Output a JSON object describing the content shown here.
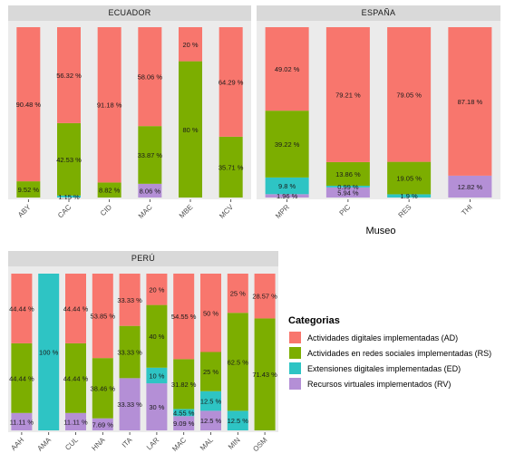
{
  "colors": {
    "AD": "#f8766d",
    "RS": "#7cae00",
    "ED": "#2ec4c4",
    "RV": "#b48fd6",
    "panel_bg": "#ebebeb",
    "strip_bg": "#d9d9d9"
  },
  "chart_data": [
    {
      "type": "bar",
      "panel": "ECUADOR",
      "categories": [
        "ABY",
        "CAC",
        "CID",
        "MAC",
        "MBE",
        "MCV"
      ],
      "series": [
        {
          "name": "Recursos virtuales implementados (RV)",
          "key": "RV",
          "values": [
            0,
            0,
            0,
            8.06,
            0,
            0
          ]
        },
        {
          "name": "Extensiones digitales implementadas (ED)",
          "key": "ED",
          "values": [
            0,
            1.15,
            0,
            0,
            0,
            0
          ]
        },
        {
          "name": "Actividades en redes sociales implementadas (RS)",
          "key": "RS",
          "values": [
            9.52,
            42.53,
            8.82,
            33.87,
            80,
            35.71
          ]
        },
        {
          "name": "Actividades digitales implementadas (AD)",
          "key": "AD",
          "values": [
            90.48,
            56.32,
            91.18,
            58.06,
            20,
            64.29
          ]
        }
      ],
      "labels": [
        [
          "",
          "",
          "9.52 %",
          "90.48 %"
        ],
        [
          "",
          "1.15 %",
          "42.53 %",
          "56.32 %"
        ],
        [
          "",
          "",
          "8.82 %",
          "91.18 %"
        ],
        [
          "8.06 %",
          "",
          "33.87 %",
          "58.06 %"
        ],
        [
          "",
          "",
          "80 %",
          "20 %"
        ],
        [
          "",
          "",
          "35.71 %",
          "64.29 %"
        ]
      ],
      "ylim": [
        0,
        100
      ]
    },
    {
      "type": "bar",
      "panel": "ESPAÑA",
      "categories": [
        "MPR",
        "PIC",
        "RES",
        "THI"
      ],
      "series": [
        {
          "name": "Recursos virtuales implementados (RV)",
          "key": "RV",
          "values": [
            1.96,
            5.94,
            0,
            12.82
          ]
        },
        {
          "name": "Extensiones digitales implementadas (ED)",
          "key": "ED",
          "values": [
            9.8,
            0.99,
            1.9,
            0
          ]
        },
        {
          "name": "Actividades en redes sociales implementadas (RS)",
          "key": "RS",
          "values": [
            39.22,
            13.86,
            19.05,
            0
          ]
        },
        {
          "name": "Actividades digitales implementadas (AD)",
          "key": "AD",
          "values": [
            49.02,
            79.21,
            79.05,
            87.18
          ]
        }
      ],
      "labels": [
        [
          "1.96 %",
          "9.8 %",
          "39.22 %",
          "49.02 %"
        ],
        [
          "5.94 %",
          "0.99 %",
          "13.86 %",
          "79.21 %"
        ],
        [
          "",
          "1.9 %",
          "19.05 %",
          "79.05 %"
        ],
        [
          "12.82 %",
          "",
          "",
          "87.18 %"
        ]
      ],
      "ylim": [
        0,
        100
      ]
    },
    {
      "type": "bar",
      "panel": "PERÚ",
      "categories": [
        "AAH",
        "AMA",
        "CUL",
        "HNA",
        "ITA",
        "LAR",
        "MAC",
        "MAL",
        "MIN",
        "OSM"
      ],
      "series": [
        {
          "name": "Recursos virtuales implementados (RV)",
          "key": "RV",
          "values": [
            11.11,
            0,
            11.11,
            7.69,
            33.33,
            30,
            9.09,
            12.5,
            0,
            0
          ]
        },
        {
          "name": "Extensiones digitales implementadas (ED)",
          "key": "ED",
          "values": [
            0,
            100,
            0,
            0,
            0,
            10,
            4.55,
            12.5,
            12.5,
            0
          ]
        },
        {
          "name": "Actividades en redes sociales implementadas (RS)",
          "key": "RS",
          "values": [
            44.44,
            0,
            44.44,
            38.46,
            33.33,
            40,
            31.82,
            25,
            62.5,
            71.43
          ]
        },
        {
          "name": "Actividades digitales implementadas (AD)",
          "key": "AD",
          "values": [
            44.44,
            0,
            44.44,
            53.85,
            33.33,
            20,
            54.55,
            50,
            25,
            28.57
          ]
        }
      ],
      "labels": [
        [
          "11.11 %",
          "",
          "44.44 %",
          "44.44 %"
        ],
        [
          "",
          "100 %",
          "",
          ""
        ],
        [
          "11.11 %",
          "",
          "44.44 %",
          "44.44 %"
        ],
        [
          "7.69 %",
          "",
          "38.46 %",
          "53.85 %"
        ],
        [
          "33.33 %",
          "",
          "33.33 %",
          "33.33 %"
        ],
        [
          "30 %",
          "10 %",
          "40 %",
          "20 %"
        ],
        [
          "9.09 %",
          "4.55 %",
          "31.82 %",
          "54.55 %"
        ],
        [
          "12.5 %",
          "12.5 %",
          "25 %",
          "50 %"
        ],
        [
          "",
          "12.5 %",
          "62.5 %",
          "25 %"
        ],
        [
          "",
          "",
          "71.43 %",
          "28.57 %"
        ]
      ],
      "ylim": [
        0,
        100
      ]
    }
  ],
  "axis_title_x": "Museo",
  "legend": {
    "title": "Categorias",
    "items": [
      {
        "key": "AD",
        "label": "Actividades digitales implementadas (AD)"
      },
      {
        "key": "RS",
        "label": "Actividades en redes sociales implementadas (RS)"
      },
      {
        "key": "ED",
        "label": "Extensiones digitales implementadas (ED)"
      },
      {
        "key": "RV",
        "label": "Recursos virtuales implementados (RV)"
      }
    ]
  }
}
